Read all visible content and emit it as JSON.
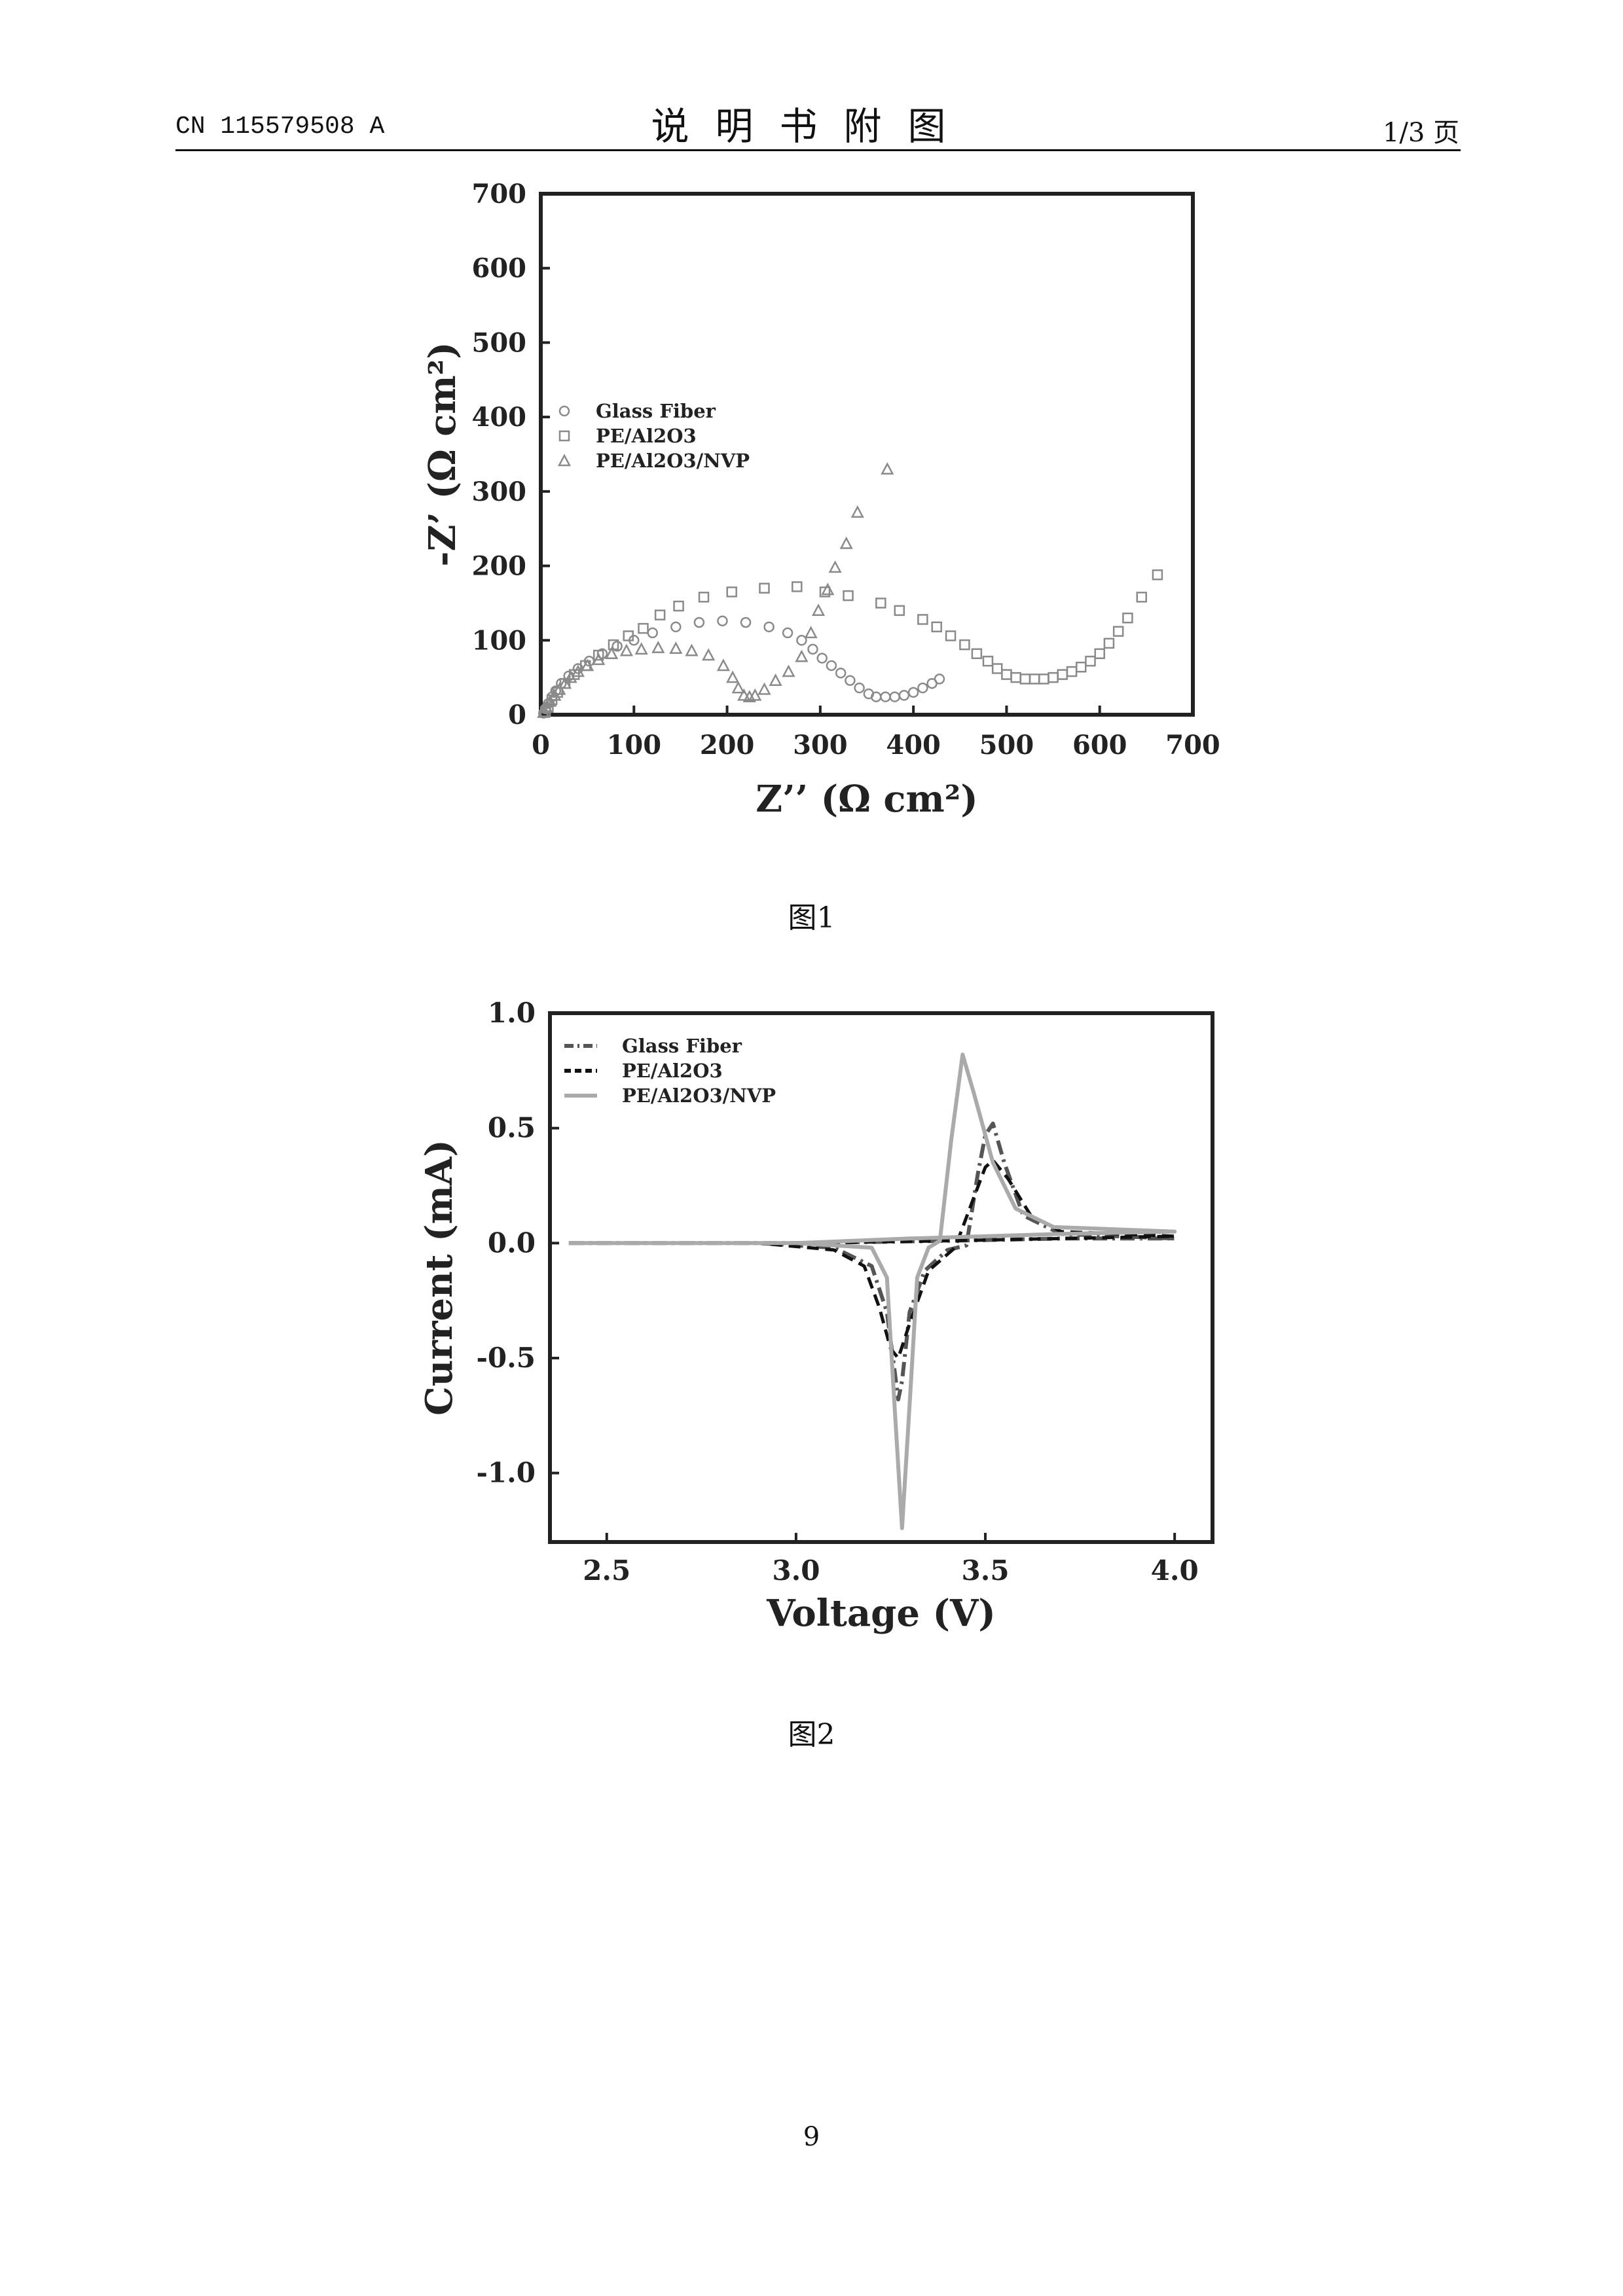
{
  "header": {
    "doc_number": "CN 115579508 A",
    "section_title": "说明书附图",
    "page_label": "1/3 页"
  },
  "figures": [
    {
      "caption": "图1"
    },
    {
      "caption": "图2"
    }
  ],
  "page_number": "9",
  "chart_data": [
    {
      "type": "scatter",
      "xlabel": "Z’’  (Ω cm²)",
      "ylabel": "-Z’  (Ω cm²)",
      "xlim": [
        0,
        700
      ],
      "ylim": [
        0,
        700
      ],
      "xticks": [
        "0",
        "100",
        "200",
        "300",
        "400",
        "500",
        "600",
        "700"
      ],
      "yticks": [
        "0",
        "100",
        "200",
        "300",
        "400",
        "500",
        "600",
        "700"
      ],
      "grid": false,
      "legend_position": "left-middle",
      "series": [
        {
          "name": "Glass Fiber",
          "marker": "circle",
          "points": [
            [
              3,
              2
            ],
            [
              5,
              8
            ],
            [
              8,
              15
            ],
            [
              12,
              24
            ],
            [
              16,
              32
            ],
            [
              22,
              42
            ],
            [
              30,
              52
            ],
            [
              40,
              62
            ],
            [
              52,
              72
            ],
            [
              66,
              82
            ],
            [
              82,
              92
            ],
            [
              100,
              100
            ],
            [
              120,
              110
            ],
            [
              145,
              118
            ],
            [
              170,
              124
            ],
            [
              195,
              126
            ],
            [
              220,
              124
            ],
            [
              245,
              118
            ],
            [
              265,
              110
            ],
            [
              280,
              100
            ],
            [
              292,
              88
            ],
            [
              302,
              76
            ],
            [
              312,
              66
            ],
            [
              322,
              56
            ],
            [
              332,
              46
            ],
            [
              342,
              36
            ],
            [
              352,
              28
            ],
            [
              360,
              24
            ],
            [
              370,
              24
            ],
            [
              380,
              24
            ],
            [
              390,
              26
            ],
            [
              400,
              30
            ],
            [
              410,
              36
            ],
            [
              420,
              42
            ],
            [
              428,
              48
            ]
          ]
        },
        {
          "name": "PE/Al2O3",
          "marker": "square",
          "points": [
            [
              5,
              4
            ],
            [
              8,
              10
            ],
            [
              12,
              20
            ],
            [
              18,
              30
            ],
            [
              26,
              42
            ],
            [
              36,
              54
            ],
            [
              48,
              66
            ],
            [
              62,
              80
            ],
            [
              78,
              94
            ],
            [
              94,
              106
            ],
            [
              110,
              116
            ],
            [
              128,
              134
            ],
            [
              148,
              146
            ],
            [
              175,
              158
            ],
            [
              205,
              165
            ],
            [
              240,
              170
            ],
            [
              275,
              172
            ],
            [
              305,
              165
            ],
            [
              330,
              160
            ],
            [
              365,
              150
            ],
            [
              385,
              140
            ],
            [
              410,
              128
            ],
            [
              425,
              118
            ],
            [
              440,
              106
            ],
            [
              455,
              94
            ],
            [
              468,
              82
            ],
            [
              480,
              72
            ],
            [
              490,
              62
            ],
            [
              500,
              54
            ],
            [
              510,
              50
            ],
            [
              520,
              48
            ],
            [
              530,
              48
            ],
            [
              540,
              48
            ],
            [
              550,
              50
            ],
            [
              560,
              54
            ],
            [
              570,
              58
            ],
            [
              580,
              64
            ],
            [
              590,
              72
            ],
            [
              600,
              82
            ],
            [
              610,
              96
            ],
            [
              620,
              112
            ],
            [
              630,
              130
            ],
            [
              645,
              158
            ],
            [
              662,
              188
            ]
          ]
        },
        {
          "name": "PE/Al2O3/NVP",
          "marker": "triangle",
          "points": [
            [
              3,
              3
            ],
            [
              6,
              10
            ],
            [
              10,
              18
            ],
            [
              15,
              26
            ],
            [
              20,
              34
            ],
            [
              26,
              42
            ],
            [
              32,
              50
            ],
            [
              40,
              58
            ],
            [
              50,
              66
            ],
            [
              62,
              74
            ],
            [
              76,
              82
            ],
            [
              92,
              86
            ],
            [
              108,
              88
            ],
            [
              126,
              90
            ],
            [
              145,
              89
            ],
            [
              162,
              86
            ],
            [
              180,
              80
            ],
            [
              196,
              66
            ],
            [
              206,
              50
            ],
            [
              212,
              36
            ],
            [
              218,
              26
            ],
            [
              224,
              24
            ],
            [
              230,
              26
            ],
            [
              240,
              34
            ],
            [
              252,
              46
            ],
            [
              266,
              58
            ],
            [
              280,
              78
            ],
            [
              290,
              110
            ],
            [
              298,
              140
            ],
            [
              308,
              168
            ],
            [
              316,
              198
            ],
            [
              328,
              230
            ],
            [
              340,
              272
            ],
            [
              372,
              330
            ]
          ]
        }
      ]
    },
    {
      "type": "line",
      "xlabel": "Voltage (V)",
      "ylabel": "Current (mA)",
      "xlim": [
        2.35,
        4.1
      ],
      "ylim": [
        -1.3,
        1.0
      ],
      "xticks": [
        "2.5",
        "3.0",
        "3.5",
        "4.0"
      ],
      "yticks": [
        "1.0",
        "0.5",
        "0.0",
        "-0.5",
        "-1.0"
      ],
      "grid": false,
      "legend_position": "top-left",
      "series": [
        {
          "name": "Glass Fiber",
          "style": "dash-dot",
          "color": "#555555",
          "points": [
            [
              2.4,
              0.0
            ],
            [
              2.9,
              0.0
            ],
            [
              3.1,
              -0.02
            ],
            [
              3.2,
              -0.1
            ],
            [
              3.24,
              -0.3
            ],
            [
              3.26,
              -0.55
            ],
            [
              3.27,
              -0.68
            ],
            [
              3.28,
              -0.6
            ],
            [
              3.3,
              -0.3
            ],
            [
              3.34,
              -0.12
            ],
            [
              3.4,
              -0.03
            ],
            [
              3.45,
              -0.01
            ],
            [
              3.48,
              0.3
            ],
            [
              3.5,
              0.47
            ],
            [
              3.52,
              0.52
            ],
            [
              3.55,
              0.35
            ],
            [
              3.6,
              0.12
            ],
            [
              3.7,
              0.04
            ],
            [
              4.0,
              0.02
            ],
            [
              3.7,
              0.02
            ],
            [
              3.4,
              0.01
            ],
            [
              3.0,
              0.0
            ],
            [
              2.4,
              0.0
            ]
          ]
        },
        {
          "name": "PE/Al2O3",
          "style": "dashed",
          "color": "#111111",
          "points": [
            [
              2.4,
              0.0
            ],
            [
              2.9,
              0.0
            ],
            [
              3.1,
              -0.03
            ],
            [
              3.18,
              -0.1
            ],
            [
              3.22,
              -0.28
            ],
            [
              3.25,
              -0.46
            ],
            [
              3.27,
              -0.5
            ],
            [
              3.3,
              -0.35
            ],
            [
              3.35,
              -0.12
            ],
            [
              3.42,
              -0.02
            ],
            [
              3.47,
              0.2
            ],
            [
              3.5,
              0.33
            ],
            [
              3.52,
              0.36
            ],
            [
              3.56,
              0.28
            ],
            [
              3.62,
              0.12
            ],
            [
              3.7,
              0.05
            ],
            [
              4.0,
              0.03
            ],
            [
              3.7,
              0.02
            ],
            [
              3.4,
              0.01
            ],
            [
              3.0,
              0.0
            ],
            [
              2.4,
              0.0
            ]
          ]
        },
        {
          "name": "PE/Al2O3/NVP",
          "style": "solid",
          "color": "#aaaaaa",
          "points": [
            [
              2.4,
              0.0
            ],
            [
              3.0,
              0.0
            ],
            [
              3.2,
              -0.02
            ],
            [
              3.24,
              -0.15
            ],
            [
              3.26,
              -0.7
            ],
            [
              3.28,
              -1.24
            ],
            [
              3.3,
              -0.7
            ],
            [
              3.32,
              -0.15
            ],
            [
              3.35,
              -0.02
            ],
            [
              3.38,
              0.01
            ],
            [
              3.41,
              0.45
            ],
            [
              3.44,
              0.82
            ],
            [
              3.47,
              0.65
            ],
            [
              3.52,
              0.35
            ],
            [
              3.58,
              0.15
            ],
            [
              3.68,
              0.07
            ],
            [
              4.0,
              0.05
            ],
            [
              3.7,
              0.04
            ],
            [
              3.3,
              0.02
            ],
            [
              3.0,
              0.0
            ],
            [
              2.4,
              0.0
            ]
          ]
        }
      ]
    }
  ]
}
